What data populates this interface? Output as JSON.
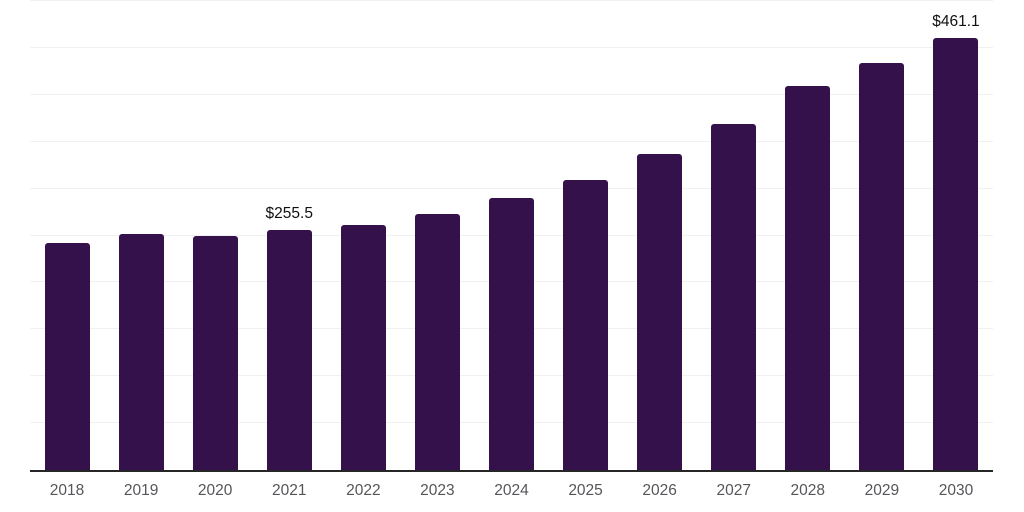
{
  "chart_data": {
    "type": "bar",
    "categories": [
      "2018",
      "2019",
      "2020",
      "2021",
      "2022",
      "2023",
      "2024",
      "2025",
      "2026",
      "2027",
      "2028",
      "2029",
      "2030"
    ],
    "values": [
      241.8,
      251.2,
      249.8,
      255.5,
      261.4,
      273.3,
      289.9,
      309.7,
      337.2,
      369.1,
      409.6,
      434.1,
      461.1
    ],
    "point_labels": {
      "2021": "$255.5",
      "2030": "$461.1"
    },
    "title": "",
    "xlabel": "",
    "ylabel": "",
    "ylim": [
      0,
      500
    ],
    "gridline_step": 50,
    "grid": "horizontal-only",
    "legend": "none",
    "y_axis_tick_labels": "hidden",
    "currency": "USD",
    "colors": {
      "bar": "#35114B",
      "gridline": "#f0f0f1",
      "axis_line": "#262626",
      "tick_label": "#56565a",
      "data_label": "#111111",
      "background": "#ffffff"
    }
  }
}
